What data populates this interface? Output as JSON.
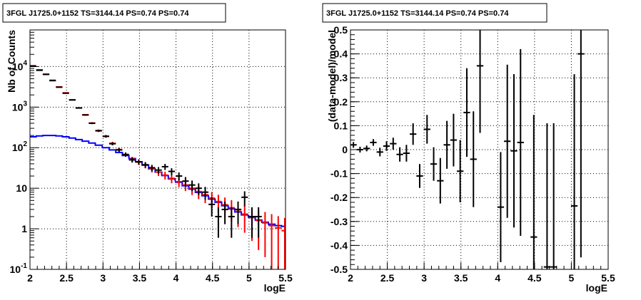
{
  "chart_data": [
    {
      "type": "scatter",
      "title": "3FGL J1725.0+1152 TS=3144.14 PS=0.74 PS=0.74",
      "xlabel": "logE",
      "ylabel": "Nb of Counts",
      "xlim": [
        2,
        5.5
      ],
      "ylim": [
        0.1,
        80000
      ],
      "yscale": "log",
      "grid": true,
      "x_ticks": [
        "2",
        "2.5",
        "3",
        "3.5",
        "4",
        "4.5",
        "5",
        "5.5"
      ],
      "y_ticks": [
        "10^-1",
        "1",
        "10",
        "10^2",
        "10^3",
        "10^4"
      ],
      "series": [
        {
          "color": "#000000",
          "style": "errorbar",
          "x": [
            2.04,
            2.13,
            2.22,
            2.31,
            2.4,
            2.49,
            2.58,
            2.67,
            2.76,
            2.85,
            2.94,
            3.04,
            3.13,
            3.22,
            3.31,
            3.4,
            3.49,
            3.58,
            3.67,
            3.76,
            3.85,
            3.94,
            4.04,
            4.13,
            4.22,
            4.31,
            4.4,
            4.49,
            4.58,
            4.67,
            4.76,
            4.85,
            4.94,
            5.04,
            5.13
          ],
          "y": [
            10200,
            8100,
            6400,
            4500,
            3100,
            2200,
            1500,
            950,
            640,
            400,
            260,
            190,
            125,
            88,
            68,
            50,
            45,
            38,
            32,
            28,
            34,
            26,
            20,
            15,
            12,
            10,
            8,
            4,
            2,
            3,
            2,
            3,
            6,
            2,
            2
          ],
          "yerr": [
            100,
            90,
            80,
            67,
            56,
            47,
            39,
            31,
            25,
            20,
            16,
            14,
            11,
            9.4,
            8.2,
            7.1,
            6.7,
            6.2,
            5.7,
            5.3,
            5.8,
            5.1,
            4.5,
            3.9,
            3.5,
            3.2,
            2.8,
            2,
            1.4,
            1.7,
            1.4,
            1.7,
            2.4,
            1.4,
            1.4
          ]
        },
        {
          "color": "#ff0000",
          "style": "errorbar",
          "x": [
            2.04,
            2.13,
            2.22,
            2.31,
            2.4,
            2.49,
            2.58,
            2.67,
            2.76,
            2.85,
            2.94,
            3.04,
            3.13,
            3.22,
            3.31,
            3.4,
            3.49,
            3.58,
            3.67,
            3.76,
            3.85,
            3.94,
            4.04,
            4.13,
            4.22,
            4.31,
            4.4,
            4.49,
            4.58,
            4.67,
            4.76,
            4.85,
            4.94,
            5.04,
            5.13,
            5.22,
            5.31,
            5.4,
            5.49
          ],
          "y": [
            10500,
            8300,
            6500,
            4600,
            3150,
            2250,
            1520,
            960,
            650,
            405,
            265,
            192,
            128,
            90,
            68,
            52,
            44,
            37,
            30,
            25,
            21,
            17.5,
            14.5,
            12,
            10,
            8.3,
            6.9,
            5.7,
            4.7,
            3.9,
            3.3,
            2.7,
            2.3,
            1.9,
            1.6,
            1.4,
            1.2,
            1.05,
            0.9
          ],
          "yerr": [
            102,
            91,
            81,
            68,
            56,
            47,
            39,
            31,
            25,
            20,
            16,
            14,
            11,
            9.5,
            8.2,
            7.2,
            6.6,
            6.1,
            5.5,
            5,
            4.6,
            4.2,
            3.8,
            3.5,
            3.2,
            2.9,
            2.6,
            2.4,
            2.2,
            2.0,
            1.8,
            1.6,
            1.5,
            1.4,
            1.3,
            1.2,
            1.1,
            1.0,
            0.95
          ]
        },
        {
          "color": "#0000ff",
          "style": "step",
          "x": [
            2.04,
            2.13,
            2.22,
            2.31,
            2.4,
            2.49,
            2.58,
            2.67,
            2.76,
            2.85,
            2.94,
            3.04,
            3.13,
            3.22,
            3.31,
            3.4,
            3.49,
            3.58,
            3.67,
            3.76,
            3.85,
            3.94,
            4.04,
            4.13,
            4.22,
            4.31,
            4.4,
            4.49,
            4.58,
            4.67,
            4.76,
            4.85,
            4.94,
            5.04,
            5.13,
            5.22,
            5.31,
            5.4,
            5.49
          ],
          "y": [
            185,
            195,
            200,
            200,
            195,
            185,
            172,
            158,
            145,
            130,
            115,
            100,
            88,
            76,
            64,
            54,
            45,
            37,
            30,
            25,
            20.5,
            17,
            14,
            11.5,
            9.5,
            7.9,
            6.5,
            5.4,
            4.5,
            3.7,
            3.1,
            2.6,
            2.2,
            1.9,
            1.65,
            1.45,
            1.3,
            1.2,
            1.15
          ]
        }
      ]
    },
    {
      "type": "scatter",
      "title": "3FGL J1725.0+1152 TS=3144.14 PS=0.74 PS=0.74",
      "xlabel": "logE",
      "ylabel": "(data-model)/model",
      "xlim": [
        2,
        5.5
      ],
      "ylim": [
        -0.5,
        0.5
      ],
      "grid": true,
      "x_ticks": [
        "2",
        "2.5",
        "3",
        "3.5",
        "4",
        "4.5",
        "5",
        "5.5"
      ],
      "y_ticks": [
        "-0.5",
        "-0.4",
        "-0.3",
        "-0.2",
        "-0.1",
        "0",
        "0.1",
        "0.2",
        "0.3",
        "0.4",
        "0.5"
      ],
      "series": [
        {
          "color": "#000000",
          "style": "errorbar",
          "x": [
            2.04,
            2.13,
            2.22,
            2.31,
            2.4,
            2.49,
            2.58,
            2.67,
            2.76,
            2.85,
            2.94,
            3.04,
            3.13,
            3.22,
            3.31,
            3.4,
            3.49,
            3.58,
            3.67,
            3.76,
            4.04,
            4.13,
            4.22,
            4.31,
            4.49,
            4.67,
            4.76,
            5.04,
            5.13
          ],
          "y": [
            0.02,
            0.0,
            0.005,
            0.03,
            -0.01,
            0.015,
            0.025,
            -0.02,
            -0.015,
            0.065,
            -0.11,
            0.085,
            -0.06,
            -0.13,
            0.02,
            0.04,
            -0.09,
            0.155,
            -0.04,
            0.35,
            -0.24,
            0.035,
            -0.005,
            0.03,
            -0.365,
            -0.49,
            -0.49,
            -0.235,
            0.4
          ],
          "yerr": [
            0.012,
            0.012,
            0.012,
            0.014,
            0.018,
            0.02,
            0.025,
            0.03,
            0.035,
            0.045,
            0.05,
            0.06,
            0.07,
            0.095,
            0.1,
            0.11,
            0.13,
            0.185,
            0.2,
            0.28,
            0.23,
            0.32,
            0.32,
            0.39,
            0.51,
            0.6,
            0.6,
            0.55,
            0.85
          ]
        }
      ]
    }
  ]
}
